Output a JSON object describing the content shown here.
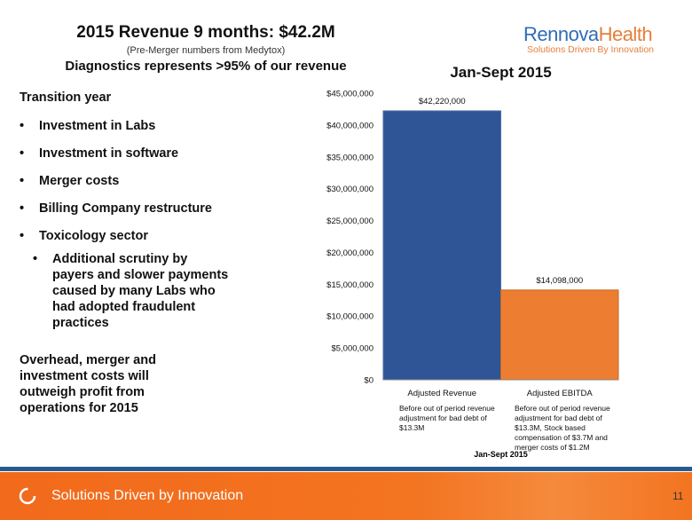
{
  "header": {
    "title": "2015 Revenue 9 months: $42.2M",
    "subtitle": "(Pre-Merger numbers from Medytox)",
    "subtitle2": "Diagnostics represents >95% of our revenue"
  },
  "logo": {
    "part1": "Rennova",
    "part2": "Health",
    "tagline": "Solutions Driven By Innovation"
  },
  "left": {
    "heading": "Transition year",
    "bullets": [
      "Investment in Labs",
      "Investment in software",
      "Merger costs",
      "Billing Company restructure",
      "Toxicology sector"
    ],
    "sub_bullet": "Additional scrutiny by payers and slower payments caused by many Labs who had adopted fraudulent practices",
    "overhead": "Overhead, merger and investment costs will outweigh profit from operations for 2015"
  },
  "chart_data": {
    "type": "bar",
    "title": "Jan-Sept 2015",
    "xlabel": "Jan-Sept 2015",
    "categories": [
      "Adjusted Revenue",
      "Adjusted EBITDA"
    ],
    "values": [
      42220000,
      14098000
    ],
    "data_labels": [
      "$42,220,000",
      "$14,098,000"
    ],
    "notes": [
      "Before out of period revenue adjustment for bad debt of $13.3M",
      "Before out of period revenue adjustment for bad debt of $13.3M, Stock based compensation of $3.7M and merger costs of $1.2M"
    ],
    "ylim": [
      0,
      45000000
    ],
    "yticks": [
      0,
      5000000,
      10000000,
      15000000,
      20000000,
      25000000,
      30000000,
      35000000,
      40000000,
      45000000
    ],
    "ytick_labels": [
      "$0",
      "$5,000,000",
      "$10,000,000",
      "$15,000,000",
      "$20,000,000",
      "$25,000,000",
      "$30,000,000",
      "$35,000,000",
      "$40,000,000",
      "$45,000,000"
    ],
    "colors": [
      "#2f5597",
      "#ed7d31"
    ],
    "grid": false
  },
  "footer": {
    "text": "Solutions Driven by Innovation",
    "page": "11"
  },
  "colors": {
    "footer": "#f37421",
    "brand_blue": "#2f6db5",
    "brand_orange": "#e67e3a"
  }
}
